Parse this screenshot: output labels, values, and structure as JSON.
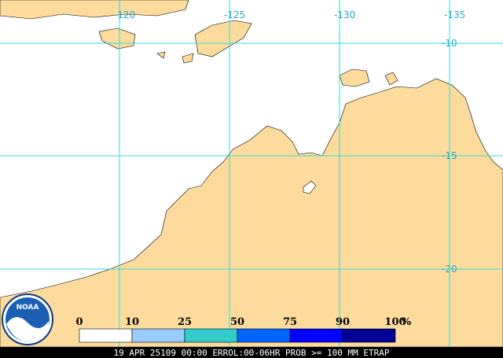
{
  "map": {
    "longitude_labels": [
      "-120",
      "-125",
      "-130",
      "-135"
    ],
    "latitude_labels": [
      "-10",
      "-15",
      "-20"
    ]
  },
  "legend": {
    "labels": [
      "0",
      "10",
      "25",
      "50",
      "75",
      "90",
      "100"
    ],
    "unit": "%",
    "colors": [
      "#ffffff",
      "#99ccff",
      "#33cccc",
      "#0066ff",
      "#0000ff",
      "#000099"
    ]
  },
  "logo": "NOAA",
  "footer": "19 APR 25109 00:00 ERROL:00-06HR PROB >= 100 MM ETRAP"
}
